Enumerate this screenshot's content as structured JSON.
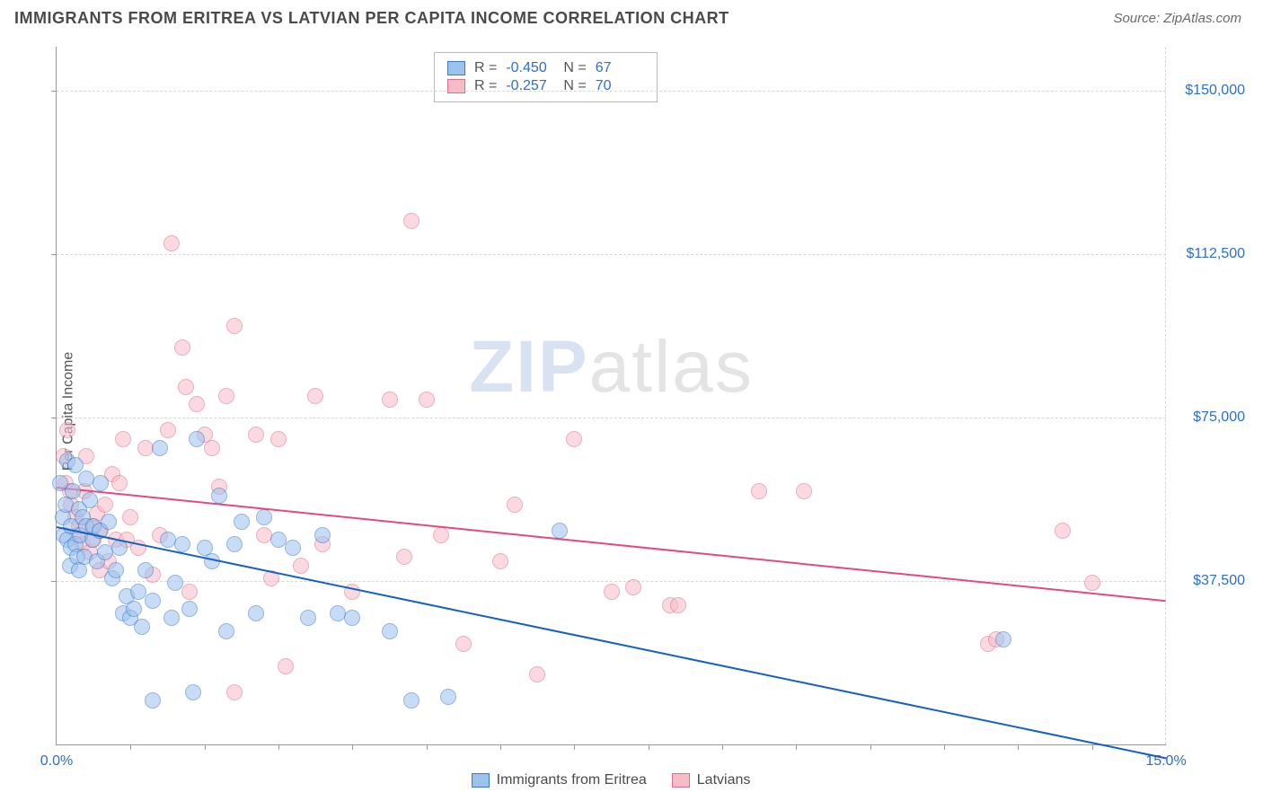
{
  "header": {
    "title": "IMMIGRANTS FROM ERITREA VS LATVIAN PER CAPITA INCOME CORRELATION CHART",
    "source": "Source: ZipAtlas.com"
  },
  "watermark": {
    "zip": "ZIP",
    "atlas": "atlas"
  },
  "chart": {
    "type": "scatter",
    "ylabel": "Per Capita Income",
    "xlim": [
      0,
      15
    ],
    "ylim": [
      0,
      160000
    ],
    "x_ticks_minor": [
      1,
      2,
      3,
      4,
      5,
      6,
      7,
      8,
      9,
      10,
      11,
      12,
      13,
      14
    ],
    "x_ticks_labeled": [
      {
        "v": 0,
        "label": "0.0%"
      },
      {
        "v": 15,
        "label": "15.0%"
      }
    ],
    "y_ticks": [
      {
        "v": 37500,
        "label": "$37,500"
      },
      {
        "v": 75000,
        "label": "$75,000"
      },
      {
        "v": 112500,
        "label": "$112,500"
      },
      {
        "v": 150000,
        "label": "$150,000"
      }
    ],
    "grid_color": "#d7d7d7",
    "axis_color": "#9a9a9a",
    "background_color": "#ffffff",
    "marker_radius": 9,
    "marker_opacity": 0.55,
    "series": {
      "eritrea": {
        "label": "Immigrants from Eritrea",
        "fill": "#9cc2ee",
        "stroke": "#3b78c9",
        "trend_color": "#1560c4",
        "R": "-0.450",
        "N": "67",
        "trend": {
          "x1": 0,
          "y1": 50000,
          "x2": 15,
          "y2": -3000
        },
        "points": [
          [
            0.05,
            60000
          ],
          [
            0.08,
            52000
          ],
          [
            0.1,
            48000
          ],
          [
            0.12,
            55000
          ],
          [
            0.15,
            47000
          ],
          [
            0.15,
            65000
          ],
          [
            0.18,
            41000
          ],
          [
            0.2,
            50000
          ],
          [
            0.2,
            45000
          ],
          [
            0.22,
            58000
          ],
          [
            0.25,
            46000
          ],
          [
            0.25,
            64000
          ],
          [
            0.28,
            43000
          ],
          [
            0.3,
            54000
          ],
          [
            0.3,
            40000
          ],
          [
            0.32,
            48000
          ],
          [
            0.35,
            52000
          ],
          [
            0.38,
            43000
          ],
          [
            0.4,
            61000
          ],
          [
            0.4,
            50000
          ],
          [
            0.45,
            56000
          ],
          [
            0.48,
            47000
          ],
          [
            0.5,
            50000
          ],
          [
            0.55,
            42000
          ],
          [
            0.58,
            49000
          ],
          [
            0.6,
            60000
          ],
          [
            0.65,
            44000
          ],
          [
            0.7,
            51000
          ],
          [
            0.75,
            38000
          ],
          [
            0.8,
            40000
          ],
          [
            0.85,
            45000
          ],
          [
            0.9,
            30000
          ],
          [
            0.95,
            34000
          ],
          [
            1.0,
            29000
          ],
          [
            1.05,
            31000
          ],
          [
            1.1,
            35000
          ],
          [
            1.15,
            27000
          ],
          [
            1.2,
            40000
          ],
          [
            1.3,
            33000
          ],
          [
            1.4,
            68000
          ],
          [
            1.5,
            47000
          ],
          [
            1.55,
            29000
          ],
          [
            1.6,
            37000
          ],
          [
            1.7,
            46000
          ],
          [
            1.8,
            31000
          ],
          [
            1.9,
            70000
          ],
          [
            2.0,
            45000
          ],
          [
            2.1,
            42000
          ],
          [
            2.2,
            57000
          ],
          [
            2.3,
            26000
          ],
          [
            2.4,
            46000
          ],
          [
            2.5,
            51000
          ],
          [
            2.7,
            30000
          ],
          [
            2.8,
            52000
          ],
          [
            3.0,
            47000
          ],
          [
            3.2,
            45000
          ],
          [
            3.4,
            29000
          ],
          [
            3.6,
            48000
          ],
          [
            3.8,
            30000
          ],
          [
            4.0,
            29000
          ],
          [
            4.5,
            26000
          ],
          [
            4.8,
            10000
          ],
          [
            5.3,
            11000
          ],
          [
            6.8,
            49000
          ],
          [
            1.3,
            10000
          ],
          [
            1.85,
            12000
          ],
          [
            12.8,
            24000
          ]
        ]
      },
      "latvian": {
        "label": "Latvians",
        "fill": "#f6bcc8",
        "stroke": "#dd6d88",
        "trend_color": "#e74a7a",
        "R": "-0.257",
        "N": "70",
        "trend": {
          "x1": 0,
          "y1": 59000,
          "x2": 15,
          "y2": 33000
        },
        "points": [
          [
            0.1,
            66000
          ],
          [
            0.12,
            60000
          ],
          [
            0.15,
            72000
          ],
          [
            0.18,
            58000
          ],
          [
            0.2,
            55000
          ],
          [
            0.25,
            52000
          ],
          [
            0.28,
            48000
          ],
          [
            0.3,
            50000
          ],
          [
            0.35,
            46000
          ],
          [
            0.38,
            58000
          ],
          [
            0.4,
            66000
          ],
          [
            0.45,
            44000
          ],
          [
            0.48,
            50000
          ],
          [
            0.5,
            47000
          ],
          [
            0.55,
            53000
          ],
          [
            0.58,
            40000
          ],
          [
            0.6,
            49000
          ],
          [
            0.65,
            55000
          ],
          [
            0.7,
            42000
          ],
          [
            0.75,
            62000
          ],
          [
            0.8,
            47000
          ],
          [
            0.85,
            60000
          ],
          [
            0.9,
            70000
          ],
          [
            0.95,
            47000
          ],
          [
            1.0,
            52000
          ],
          [
            1.1,
            45000
          ],
          [
            1.2,
            68000
          ],
          [
            1.3,
            39000
          ],
          [
            1.4,
            48000
          ],
          [
            1.5,
            72000
          ],
          [
            1.55,
            115000
          ],
          [
            1.7,
            91000
          ],
          [
            1.75,
            82000
          ],
          [
            1.8,
            35000
          ],
          [
            1.9,
            78000
          ],
          [
            2.0,
            71000
          ],
          [
            2.1,
            68000
          ],
          [
            2.2,
            59000
          ],
          [
            2.3,
            80000
          ],
          [
            2.4,
            96000
          ],
          [
            2.7,
            71000
          ],
          [
            2.8,
            48000
          ],
          [
            2.9,
            38000
          ],
          [
            3.0,
            70000
          ],
          [
            3.3,
            41000
          ],
          [
            3.5,
            80000
          ],
          [
            3.6,
            46000
          ],
          [
            4.0,
            35000
          ],
          [
            4.5,
            79000
          ],
          [
            4.7,
            43000
          ],
          [
            4.8,
            120000
          ],
          [
            5.0,
            79000
          ],
          [
            5.2,
            48000
          ],
          [
            5.5,
            23000
          ],
          [
            6.0,
            42000
          ],
          [
            6.2,
            55000
          ],
          [
            6.5,
            16000
          ],
          [
            7.0,
            70000
          ],
          [
            7.5,
            35000
          ],
          [
            7.8,
            36000
          ],
          [
            8.3,
            32000
          ],
          [
            8.4,
            32000
          ],
          [
            9.5,
            58000
          ],
          [
            10.1,
            58000
          ],
          [
            12.6,
            23000
          ],
          [
            12.7,
            24000
          ],
          [
            13.6,
            49000
          ],
          [
            14.0,
            37000
          ],
          [
            2.4,
            12000
          ],
          [
            3.1,
            18000
          ]
        ]
      }
    },
    "legend_top_labels": {
      "R": "R =",
      "N": "N ="
    },
    "tick_label_color": "#2a6fd6",
    "tick_label_fontsize": 16
  }
}
